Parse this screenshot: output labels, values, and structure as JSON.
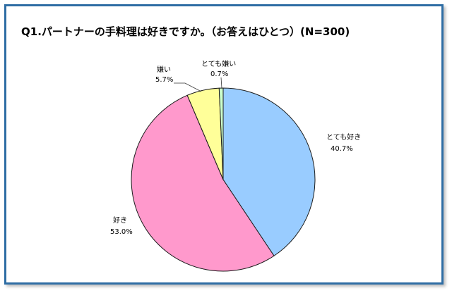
{
  "chart_data": {
    "type": "pie",
    "title": "Q1.パートナーの手料理は好きですか。（お答えはひとつ）(N=300)",
    "slices": [
      {
        "label": "とても好き",
        "value": 40.7,
        "value_text": "40.7%",
        "color": "#99ccff"
      },
      {
        "label": "好き",
        "value": 53.0,
        "value_text": "53.0%",
        "color": "#ff99cc"
      },
      {
        "label": "嫌い",
        "value": 5.7,
        "value_text": "5.7%",
        "color": "#ffff99"
      },
      {
        "label": "とても嫌い",
        "value": 0.7,
        "value_text": "0.7%",
        "color": "#ccffcc"
      }
    ],
    "start": "12 o'clock",
    "direction": "clockwise",
    "legend": "none"
  }
}
